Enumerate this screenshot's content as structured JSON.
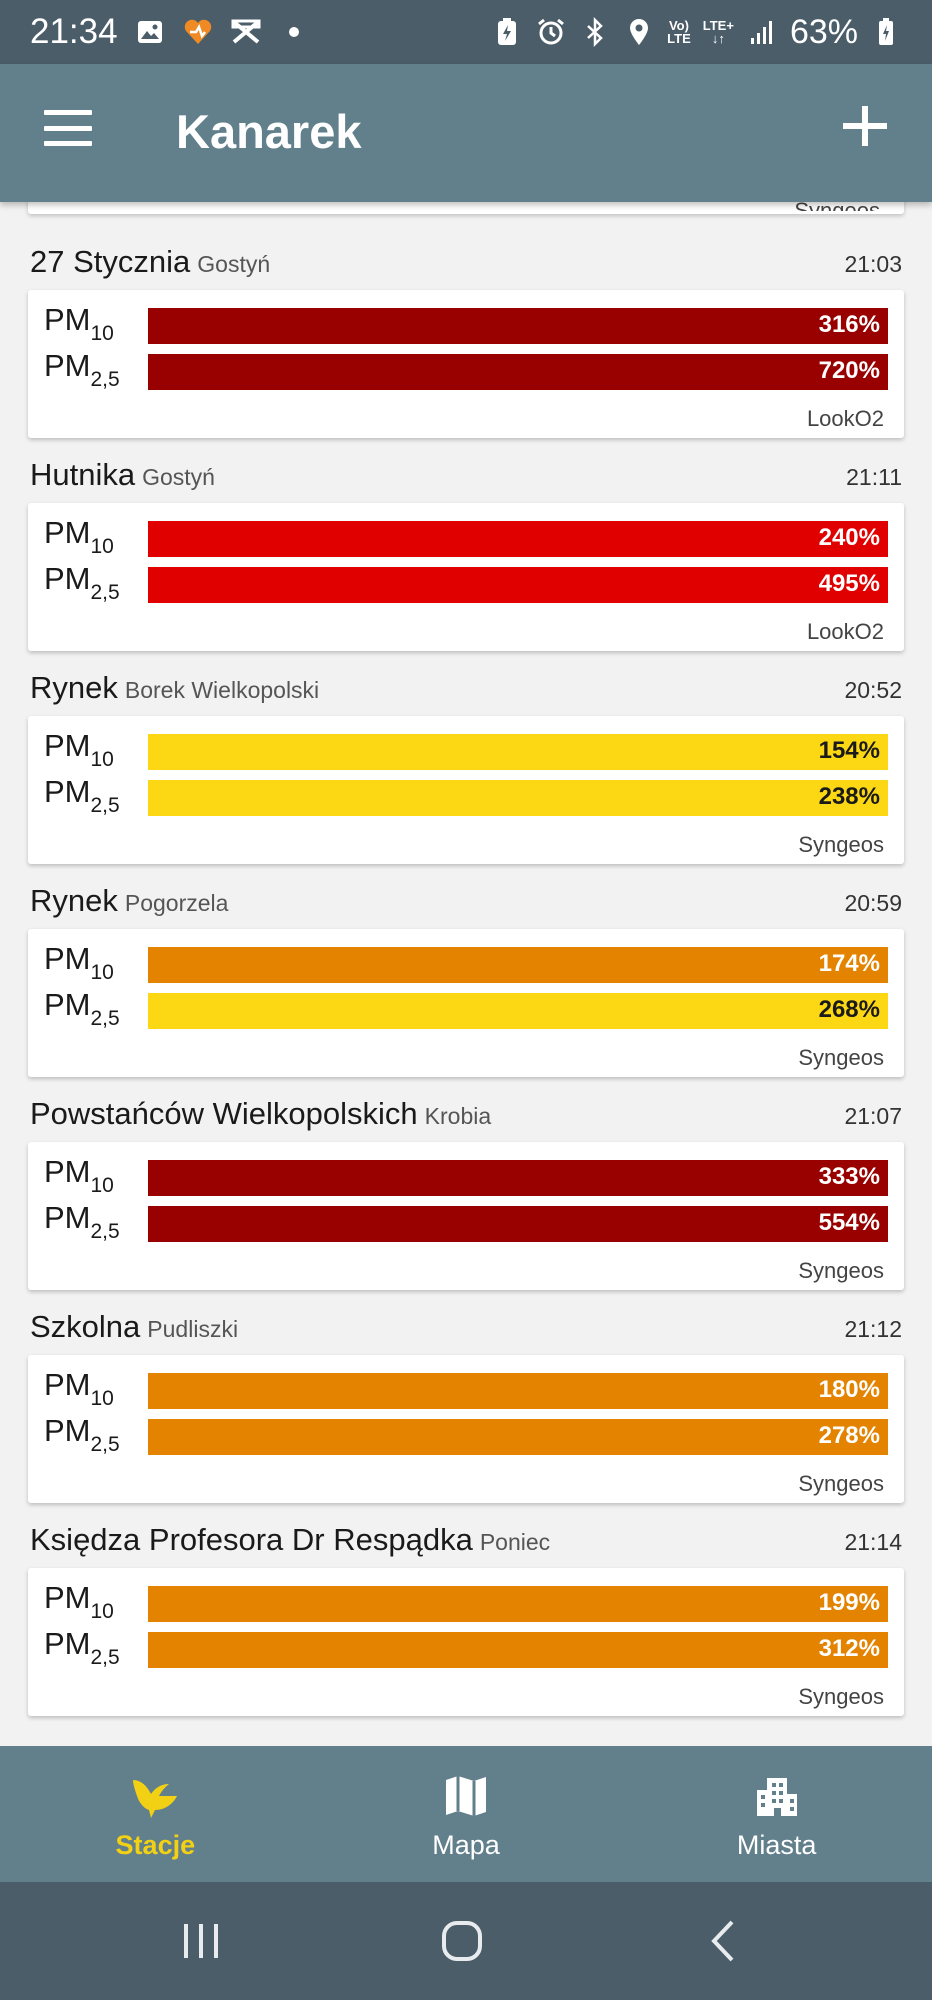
{
  "status_bar": {
    "time": "21:34",
    "volte_top": "Vo)",
    "volte_bottom": "LTE",
    "lte_label": "LTE+",
    "battery": "63%",
    "icons": [
      "image-icon",
      "heart-icon",
      "capcut-icon",
      "dot-icon",
      "battery-saver-icon",
      "alarm-icon",
      "bluetooth-icon",
      "location-icon",
      "signal-icon",
      "battery-icon"
    ]
  },
  "app_bar": {
    "title": "Kanarek",
    "menu_icon": "hamburger-menu-icon",
    "add_icon": "plus-icon"
  },
  "colors": {
    "dark_red": "#990000",
    "red": "#e00000",
    "yellow": "#fcd814",
    "orange": "#e38300",
    "nav_active": "#f2d114"
  },
  "partial_station": {
    "source": "Syngeos"
  },
  "stations": [
    {
      "name": "27 Stycznia",
      "city": "Gostyń",
      "time": "21:03",
      "pm10_sub": "10",
      "pm25_sub": "2,5",
      "pm10": "316%",
      "pm25": "720%",
      "pm10_color": "#990000",
      "pm25_color": "#990000",
      "source": "LookO2"
    },
    {
      "name": "Hutnika",
      "city": "Gostyń",
      "time": "21:11",
      "pm10_sub": "10",
      "pm25_sub": "2,5",
      "pm10": "240%",
      "pm25": "495%",
      "pm10_color": "#e00000",
      "pm25_color": "#e00000",
      "source": "LookO2"
    },
    {
      "name": "Rynek",
      "city": "Borek Wielkopolski",
      "time": "20:52",
      "pm10_sub": "10",
      "pm25_sub": "2,5",
      "pm10": "154%",
      "pm25": "238%",
      "pm10_color": "#fcd814",
      "pm25_color": "#fcd814",
      "source": "Syngeos"
    },
    {
      "name": "Rynek",
      "city": "Pogorzela",
      "time": "20:59",
      "pm10_sub": "10",
      "pm25_sub": "2,5",
      "pm10": "174%",
      "pm25": "268%",
      "pm10_color": "#e38300",
      "pm25_color": "#fcd814",
      "source": "Syngeos"
    },
    {
      "name": "Powstańców Wielkopolskich",
      "city": "Krobia",
      "time": "21:07",
      "pm10_sub": "10",
      "pm25_sub": "2,5",
      "pm10": "333%",
      "pm25": "554%",
      "pm10_color": "#990000",
      "pm25_color": "#990000",
      "source": "Syngeos"
    },
    {
      "name": "Szkolna",
      "city": "Pudliszki",
      "time": "21:12",
      "pm10_sub": "10",
      "pm25_sub": "2,5",
      "pm10": "180%",
      "pm25": "278%",
      "pm10_color": "#e38300",
      "pm25_color": "#e38300",
      "source": "Syngeos"
    },
    {
      "name": "Księdza Profesora Dr Respądka",
      "city": "Poniec",
      "time": "21:14",
      "pm10_sub": "10",
      "pm25_sub": "2,5",
      "pm10": "199%",
      "pm25": "312%",
      "pm10_color": "#e38300",
      "pm25_color": "#e38300",
      "source": "Syngeos"
    }
  ],
  "pm_label": "PM",
  "bottom_nav": {
    "items": [
      {
        "label": "Stacje",
        "icon": "canary-bird-icon",
        "active": true
      },
      {
        "label": "Mapa",
        "icon": "map-icon",
        "active": false
      },
      {
        "label": "Miasta",
        "icon": "city-buildings-icon",
        "active": false
      }
    ]
  },
  "system_nav": {
    "icons": [
      "recent-apps-icon",
      "home-icon",
      "back-icon"
    ]
  }
}
